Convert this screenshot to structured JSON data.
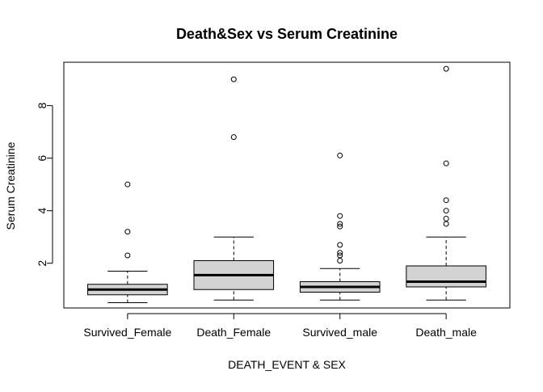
{
  "chart_data": {
    "type": "boxplot",
    "title": "Death&Sex vs Serum Creatinine",
    "xlabel": "DEATH_EVENT & SEX",
    "ylabel": "Serum Creatinine",
    "ylim": [
      0.3,
      9.65
    ],
    "yticks": [
      2,
      4,
      6,
      8
    ],
    "grid": false,
    "legend": "none",
    "box_fill": "#d3d3d3",
    "line_color": "#000000",
    "categories": [
      "Survived_Female",
      "Death_Female",
      "Survived_male",
      "Death_male"
    ],
    "boxes": [
      {
        "name": "Survived_Female",
        "whisker_low": 0.5,
        "q1": 0.8,
        "median": 1.0,
        "q3": 1.2,
        "whisker_high": 1.7,
        "outliers": [
          2.3,
          3.2,
          5.0
        ]
      },
      {
        "name": "Death_Female",
        "whisker_low": 0.6,
        "q1": 1.0,
        "median": 1.55,
        "q3": 2.1,
        "whisker_high": 3.0,
        "outliers": [
          6.8,
          9.0
        ]
      },
      {
        "name": "Survived_male",
        "whisker_low": 0.6,
        "q1": 0.9,
        "median": 1.1,
        "q3": 1.3,
        "whisker_high": 1.8,
        "outliers": [
          2.1,
          2.3,
          2.4,
          2.7,
          3.4,
          3.5,
          3.8,
          6.1
        ]
      },
      {
        "name": "Death_male",
        "whisker_low": 0.6,
        "q1": 1.1,
        "median": 1.3,
        "q3": 1.9,
        "whisker_high": 3.0,
        "outliers": [
          3.5,
          3.7,
          4.0,
          4.4,
          5.8,
          9.4
        ]
      }
    ]
  }
}
